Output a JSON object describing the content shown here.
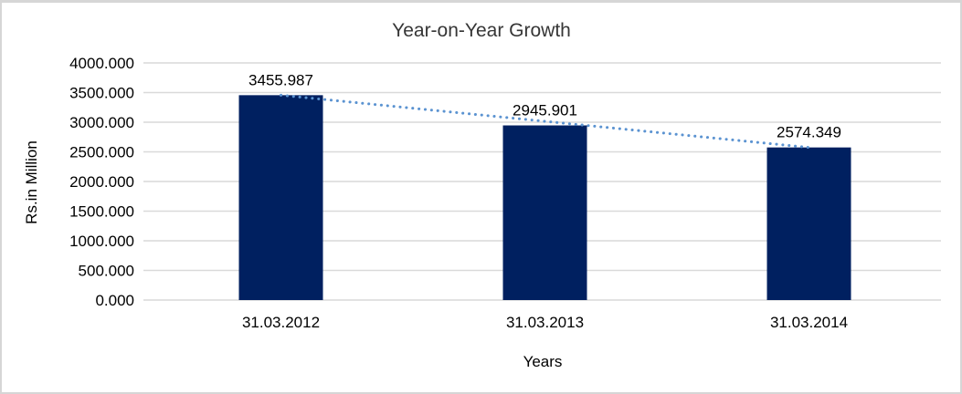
{
  "chart_data": {
    "type": "bar",
    "title": "Year-on-Year Growth",
    "xlabel": "Years",
    "ylabel": "Rs.in Million",
    "categories": [
      "31.03.2012",
      "31.03.2013",
      "31.03.2014"
    ],
    "values": [
      3455.987,
      2945.901,
      2574.349
    ],
    "data_labels": [
      "3455.987",
      "2945.901",
      "2574.349"
    ],
    "ylim": [
      0,
      4000
    ],
    "y_tick_step": 500,
    "y_tick_labels": [
      "0.000",
      "500.000",
      "1000.000",
      "1500.000",
      "2000.000",
      "2500.000",
      "3000.000",
      "3500.000",
      "4000.000"
    ],
    "grid": true,
    "legend_position": "none",
    "colors": {
      "bar": "#002060",
      "trendline": "#5B93D1",
      "gridline": "#D9D9D9",
      "text": "#000000",
      "title_text": "#363636",
      "frame_border": "#D6D6D6",
      "background": "#FFFFFF"
    },
    "trendline": {
      "type": "linear",
      "style": "dotted",
      "spans": "bar1-center to bar3-center"
    }
  }
}
